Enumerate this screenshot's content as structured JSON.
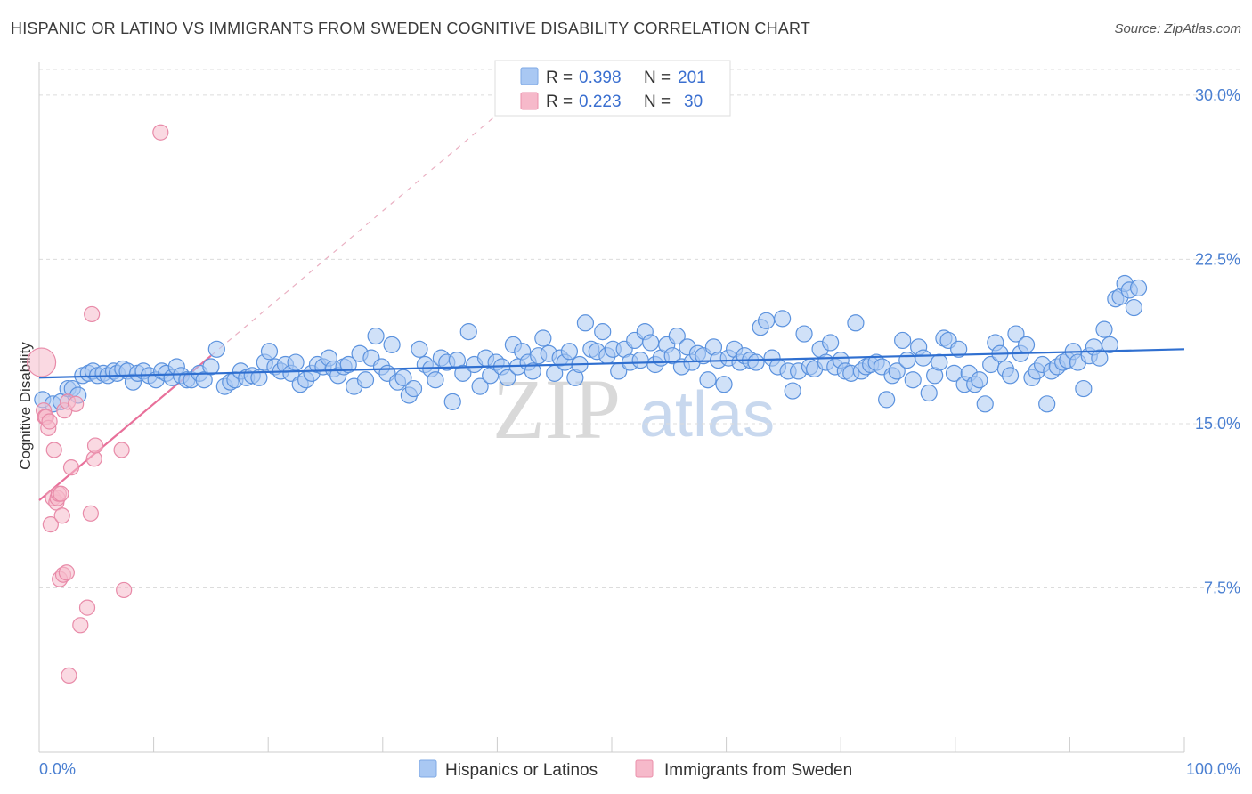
{
  "title": "HISPANIC OR LATINO VS IMMIGRANTS FROM SWEDEN COGNITIVE DISABILITY CORRELATION CHART",
  "source": "Source: ZipAtlas.com",
  "watermark": {
    "zip": "ZIP",
    "atlas": "atlas"
  },
  "legend_top": {
    "rows": [
      {
        "r_label": "R =",
        "r_value": "0.398",
        "n_label": "N =",
        "n_value": "201",
        "color": "#a9c8f3"
      },
      {
        "r_label": "R =",
        "r_value": "0.223",
        "n_label": "N =",
        "n_value": "30",
        "color": "#f6b9ca"
      }
    ]
  },
  "legend_bottom": {
    "items": [
      {
        "label": "Hispanics or Latinos",
        "color": "#a9c8f3"
      },
      {
        "label": "Immigrants from Sweden",
        "color": "#f6b9ca"
      }
    ]
  },
  "chart_data": {
    "type": "scatter",
    "title": "HISPANIC OR LATINO VS IMMIGRANTS FROM SWEDEN COGNITIVE DISABILITY CORRELATION CHART",
    "xlabel": "",
    "ylabel": "Cognitive Disability",
    "xlim": [
      0,
      100
    ],
    "ylim": [
      0,
      31.5
    ],
    "x_tick_labels": [
      "0.0%",
      "100.0%"
    ],
    "y_ticks": [
      7.5,
      15.0,
      22.5,
      30.0
    ],
    "y_tick_labels": [
      "7.5%",
      "15.0%",
      "22.5%",
      "30.0%"
    ],
    "grid": true,
    "legend_placement": "top-center",
    "colors": {
      "blue": "#4a86d8",
      "pink": "#e8709a"
    },
    "series": [
      {
        "name": "Hispanics or Latinos",
        "color": "#4a86d8",
        "trend": {
          "x": [
            0,
            100
          ],
          "y": [
            17.1,
            18.4
          ]
        },
        "points": [
          [
            0.3,
            16.1
          ],
          [
            1.2,
            15.9
          ],
          [
            1.9,
            16.0
          ],
          [
            2.5,
            16.6
          ],
          [
            2.9,
            16.6
          ],
          [
            3.4,
            16.3
          ],
          [
            3.8,
            17.2
          ],
          [
            4.3,
            17.3
          ],
          [
            4.7,
            17.4
          ],
          [
            5.1,
            17.2
          ],
          [
            5.6,
            17.3
          ],
          [
            6.0,
            17.2
          ],
          [
            6.5,
            17.4
          ],
          [
            6.8,
            17.3
          ],
          [
            7.3,
            17.5
          ],
          [
            7.7,
            17.4
          ],
          [
            8.2,
            16.9
          ],
          [
            8.6,
            17.3
          ],
          [
            9.1,
            17.4
          ],
          [
            9.6,
            17.2
          ],
          [
            10.2,
            17.0
          ],
          [
            10.7,
            17.4
          ],
          [
            11.1,
            17.3
          ],
          [
            11.6,
            17.1
          ],
          [
            12.0,
            17.6
          ],
          [
            12.4,
            17.2
          ],
          [
            12.9,
            17.0
          ],
          [
            13.3,
            17.0
          ],
          [
            14.0,
            17.3
          ],
          [
            14.4,
            17.0
          ],
          [
            15.0,
            17.6
          ],
          [
            15.5,
            18.4
          ],
          [
            16.2,
            16.7
          ],
          [
            16.7,
            16.9
          ],
          [
            17.1,
            17.0
          ],
          [
            17.6,
            17.4
          ],
          [
            18.1,
            17.1
          ],
          [
            18.6,
            17.2
          ],
          [
            19.2,
            17.1
          ],
          [
            19.7,
            17.8
          ],
          [
            20.1,
            18.3
          ],
          [
            20.6,
            17.6
          ],
          [
            21.1,
            17.4
          ],
          [
            21.5,
            17.7
          ],
          [
            22.0,
            17.3
          ],
          [
            22.4,
            17.8
          ],
          [
            22.8,
            16.8
          ],
          [
            23.3,
            17.0
          ],
          [
            23.8,
            17.3
          ],
          [
            24.3,
            17.7
          ],
          [
            24.8,
            17.6
          ],
          [
            25.3,
            18.0
          ],
          [
            25.7,
            17.5
          ],
          [
            26.1,
            17.2
          ],
          [
            26.6,
            17.6
          ],
          [
            27.0,
            17.7
          ],
          [
            27.5,
            16.7
          ],
          [
            28.0,
            18.2
          ],
          [
            28.5,
            17.0
          ],
          [
            29.0,
            18.0
          ],
          [
            29.4,
            19.0
          ],
          [
            29.9,
            17.6
          ],
          [
            30.4,
            17.3
          ],
          [
            30.8,
            18.6
          ],
          [
            31.3,
            16.9
          ],
          [
            31.8,
            17.1
          ],
          [
            32.3,
            16.3
          ],
          [
            32.7,
            16.6
          ],
          [
            33.2,
            18.4
          ],
          [
            33.7,
            17.7
          ],
          [
            34.2,
            17.5
          ],
          [
            34.6,
            17.0
          ],
          [
            35.1,
            18.0
          ],
          [
            35.6,
            17.8
          ],
          [
            36.1,
            16.0
          ],
          [
            36.5,
            17.9
          ],
          [
            37.0,
            17.3
          ],
          [
            37.5,
            19.2
          ],
          [
            38.0,
            17.7
          ],
          [
            38.5,
            16.7
          ],
          [
            39.0,
            18.0
          ],
          [
            39.4,
            17.2
          ],
          [
            39.9,
            17.8
          ],
          [
            40.4,
            17.6
          ],
          [
            40.9,
            17.1
          ],
          [
            41.4,
            18.6
          ],
          [
            41.8,
            17.6
          ],
          [
            42.2,
            18.3
          ],
          [
            42.7,
            17.8
          ],
          [
            43.1,
            17.4
          ],
          [
            43.6,
            18.1
          ],
          [
            44.0,
            18.9
          ],
          [
            44.5,
            18.2
          ],
          [
            45.0,
            17.3
          ],
          [
            45.5,
            18.0
          ],
          [
            45.9,
            17.8
          ],
          [
            46.3,
            18.3
          ],
          [
            46.8,
            17.1
          ],
          [
            47.2,
            17.7
          ],
          [
            47.7,
            19.6
          ],
          [
            48.2,
            18.4
          ],
          [
            48.7,
            18.3
          ],
          [
            49.2,
            19.2
          ],
          [
            49.6,
            18.1
          ],
          [
            50.1,
            18.4
          ],
          [
            50.6,
            17.4
          ],
          [
            51.1,
            18.4
          ],
          [
            51.6,
            17.8
          ],
          [
            52.0,
            18.8
          ],
          [
            52.5,
            17.9
          ],
          [
            52.9,
            19.2
          ],
          [
            53.4,
            18.7
          ],
          [
            53.8,
            17.7
          ],
          [
            54.3,
            18.0
          ],
          [
            54.8,
            18.6
          ],
          [
            55.3,
            18.1
          ],
          [
            55.7,
            19.0
          ],
          [
            56.1,
            17.6
          ],
          [
            56.6,
            18.5
          ],
          [
            57.0,
            17.8
          ],
          [
            57.5,
            18.2
          ],
          [
            58.0,
            18.1
          ],
          [
            58.4,
            17.0
          ],
          [
            58.9,
            18.5
          ],
          [
            59.3,
            17.9
          ],
          [
            59.8,
            16.8
          ],
          [
            60.2,
            18.0
          ],
          [
            60.7,
            18.4
          ],
          [
            61.2,
            17.8
          ],
          [
            61.6,
            18.1
          ],
          [
            62.1,
            17.9
          ],
          [
            62.6,
            17.8
          ],
          [
            63.0,
            19.4
          ],
          [
            63.5,
            19.7
          ],
          [
            64.0,
            18.0
          ],
          [
            64.5,
            17.6
          ],
          [
            64.9,
            19.8
          ],
          [
            65.4,
            17.4
          ],
          [
            65.8,
            16.5
          ],
          [
            66.3,
            17.4
          ],
          [
            66.8,
            19.1
          ],
          [
            67.3,
            17.6
          ],
          [
            67.7,
            17.5
          ],
          [
            68.2,
            18.4
          ],
          [
            68.7,
            17.8
          ],
          [
            69.1,
            18.7
          ],
          [
            69.5,
            17.6
          ],
          [
            70.0,
            17.9
          ],
          [
            70.4,
            17.4
          ],
          [
            70.9,
            17.3
          ],
          [
            71.3,
            19.6
          ],
          [
            71.8,
            17.4
          ],
          [
            72.2,
            17.6
          ],
          [
            72.6,
            17.7
          ],
          [
            73.1,
            17.8
          ],
          [
            73.6,
            17.6
          ],
          [
            74.0,
            16.1
          ],
          [
            74.5,
            17.2
          ],
          [
            74.9,
            17.4
          ],
          [
            75.4,
            18.8
          ],
          [
            75.8,
            17.9
          ],
          [
            76.3,
            17.0
          ],
          [
            76.8,
            18.5
          ],
          [
            77.2,
            18.0
          ],
          [
            77.7,
            16.4
          ],
          [
            78.2,
            17.2
          ],
          [
            78.6,
            17.8
          ],
          [
            79.0,
            18.9
          ],
          [
            79.4,
            18.8
          ],
          [
            79.9,
            17.3
          ],
          [
            80.3,
            18.4
          ],
          [
            80.8,
            16.8
          ],
          [
            81.2,
            17.3
          ],
          [
            81.7,
            16.8
          ],
          [
            82.1,
            17.0
          ],
          [
            82.6,
            15.9
          ],
          [
            83.1,
            17.7
          ],
          [
            83.5,
            18.7
          ],
          [
            83.9,
            18.2
          ],
          [
            84.4,
            17.5
          ],
          [
            84.8,
            17.2
          ],
          [
            85.3,
            19.1
          ],
          [
            85.7,
            18.2
          ],
          [
            86.2,
            18.6
          ],
          [
            86.7,
            17.1
          ],
          [
            87.1,
            17.4
          ],
          [
            87.6,
            17.7
          ],
          [
            88.0,
            15.9
          ],
          [
            88.4,
            17.4
          ],
          [
            88.9,
            17.6
          ],
          [
            89.4,
            17.8
          ],
          [
            89.8,
            17.9
          ],
          [
            90.3,
            18.3
          ],
          [
            90.7,
            17.8
          ],
          [
            91.2,
            16.6
          ],
          [
            91.7,
            18.1
          ],
          [
            92.1,
            18.5
          ],
          [
            92.6,
            18.0
          ],
          [
            93.0,
            19.3
          ],
          [
            93.5,
            18.6
          ],
          [
            94.0,
            20.7
          ],
          [
            94.4,
            20.8
          ],
          [
            94.8,
            21.4
          ],
          [
            95.2,
            21.1
          ],
          [
            95.6,
            20.3
          ],
          [
            96.0,
            21.2
          ]
        ]
      },
      {
        "name": "Immigrants from Sweden",
        "color": "#e8709a",
        "trend": {
          "x": [
            0,
            15
          ],
          "y": [
            11.5,
            18.1
          ]
        },
        "trend_extension": {
          "x": [
            15,
            42
          ],
          "y": [
            18.1,
            30.0
          ]
        },
        "points": [
          [
            0.2,
            17.8
          ],
          [
            0.4,
            15.6
          ],
          [
            0.5,
            15.3
          ],
          [
            0.6,
            15.3
          ],
          [
            0.8,
            14.8
          ],
          [
            0.9,
            15.1
          ],
          [
            1.0,
            10.4
          ],
          [
            1.2,
            11.6
          ],
          [
            1.3,
            13.8
          ],
          [
            1.5,
            11.4
          ],
          [
            1.6,
            11.6
          ],
          [
            1.7,
            11.8
          ],
          [
            1.8,
            7.9
          ],
          [
            1.9,
            11.8
          ],
          [
            2.0,
            10.8
          ],
          [
            2.1,
            8.1
          ],
          [
            2.2,
            15.6
          ],
          [
            2.4,
            8.2
          ],
          [
            2.5,
            16.0
          ],
          [
            2.6,
            3.5
          ],
          [
            2.8,
            13.0
          ],
          [
            3.2,
            15.9
          ],
          [
            3.6,
            5.8
          ],
          [
            4.2,
            6.6
          ],
          [
            4.5,
            10.9
          ],
          [
            4.6,
            20.0
          ],
          [
            4.8,
            13.4
          ],
          [
            4.9,
            14.0
          ],
          [
            7.2,
            13.8
          ],
          [
            7.4,
            7.4
          ],
          [
            10.6,
            28.3
          ]
        ]
      }
    ]
  }
}
